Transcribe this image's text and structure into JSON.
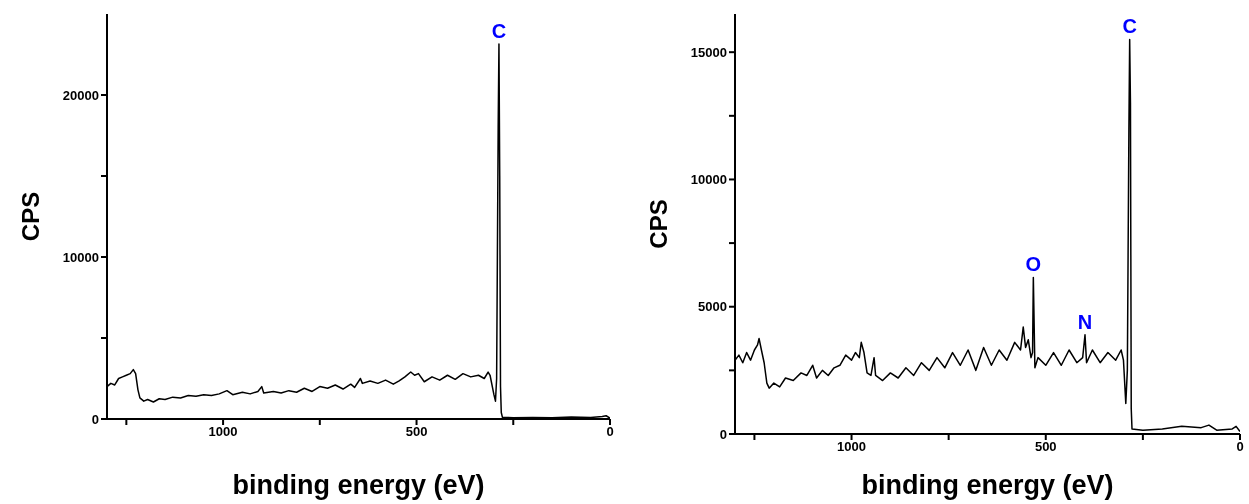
{
  "chart_data": [
    {
      "type": "line",
      "xlabel": "binding energy (eV)",
      "ylabel": "CPS",
      "xlim": [
        1300,
        0
      ],
      "xticks": [
        {
          "value": 1250,
          "label": null
        },
        1000,
        {
          "value": 750,
          "label": null
        },
        500,
        {
          "value": 250,
          "label": null
        },
        0
      ],
      "ylim": [
        0,
        25000
      ],
      "yticks": [
        0,
        {
          "value": 5000,
          "label": null
        },
        10000,
        {
          "value": 15000,
          "label": null
        },
        20000
      ],
      "grid": false,
      "legend": false,
      "marker": "none",
      "line_style": "solid",
      "series": [
        {
          "color": "#000000",
          "x": [
            1300,
            1290,
            1280,
            1270,
            1260,
            1250,
            1240,
            1232,
            1226,
            1220,
            1215,
            1205,
            1195,
            1180,
            1165,
            1150,
            1130,
            1110,
            1090,
            1070,
            1050,
            1030,
            1010,
            990,
            975,
            950,
            930,
            910,
            900,
            895,
            870,
            850,
            830,
            810,
            790,
            770,
            750,
            730,
            710,
            690,
            670,
            660,
            645,
            640,
            620,
            600,
            580,
            560,
            545,
            530,
            515,
            505,
            495,
            480,
            460,
            440,
            420,
            400,
            380,
            360,
            340,
            325,
            315,
            310,
            300,
            296,
            293,
            289,
            287,
            285,
            283,
            281,
            278,
            250,
            200,
            150,
            100,
            50,
            20,
            10,
            0
          ],
          "values": [
            2000,
            2200,
            2100,
            2500,
            2600,
            2700,
            2800,
            3050,
            2800,
            1800,
            1300,
            1100,
            1200,
            1050,
            1250,
            1200,
            1350,
            1300,
            1450,
            1400,
            1500,
            1450,
            1550,
            1750,
            1500,
            1650,
            1550,
            1700,
            2000,
            1600,
            1700,
            1600,
            1750,
            1650,
            1900,
            1700,
            2000,
            1900,
            2100,
            1850,
            2150,
            1950,
            2500,
            2200,
            2350,
            2200,
            2400,
            2150,
            2350,
            2600,
            2900,
            2700,
            2800,
            2300,
            2600,
            2400,
            2700,
            2450,
            2800,
            2600,
            2700,
            2500,
            2900,
            2700,
            1500,
            1100,
            2500,
            18000,
            23150,
            15000,
            2000,
            400,
            100,
            80,
            100,
            80,
            120,
            100,
            150,
            200,
            50
          ]
        }
      ],
      "annotations": [
        {
          "text": "C",
          "x": 287,
          "y": 23150
        }
      ]
    },
    {
      "type": "line",
      "xlabel": "binding energy (eV)",
      "ylabel": "CPS",
      "xlim": [
        1300,
        0
      ],
      "xticks": [
        {
          "value": 1250,
          "label": null
        },
        1000,
        {
          "value": 750,
          "label": null
        },
        500,
        {
          "value": 250,
          "label": null
        },
        0
      ],
      "ylim": [
        0,
        16500
      ],
      "yticks": [
        0,
        {
          "value": 2500,
          "label": null
        },
        5000,
        {
          "value": 7500,
          "label": null
        },
        10000,
        {
          "value": 12500,
          "label": null
        },
        15000
      ],
      "grid": false,
      "legend": false,
      "marker": "none",
      "line_style": "solid",
      "series": [
        {
          "color": "#000000",
          "x": [
            1300,
            1290,
            1280,
            1270,
            1260,
            1250,
            1242,
            1238,
            1232,
            1225,
            1218,
            1212,
            1200,
            1185,
            1170,
            1150,
            1130,
            1115,
            1100,
            1090,
            1075,
            1060,
            1045,
            1030,
            1015,
            1000,
            990,
            980,
            975,
            968,
            960,
            950,
            942,
            938,
            920,
            900,
            880,
            860,
            840,
            820,
            800,
            780,
            760,
            740,
            720,
            700,
            680,
            660,
            640,
            620,
            600,
            580,
            565,
            558,
            552,
            545,
            538,
            534,
            532,
            528,
            520,
            500,
            480,
            460,
            440,
            420,
            405,
            399,
            395,
            380,
            360,
            340,
            320,
            306,
            300,
            294,
            290,
            286,
            284,
            282,
            280,
            278,
            250,
            200,
            150,
            100,
            80,
            60,
            20,
            10,
            0
          ],
          "values": [
            2900,
            3100,
            2800,
            3200,
            2900,
            3300,
            3500,
            3750,
            3300,
            2800,
            2000,
            1800,
            2000,
            1850,
            2200,
            2100,
            2400,
            2300,
            2700,
            2200,
            2500,
            2300,
            2600,
            2700,
            3100,
            2900,
            3200,
            3000,
            3600,
            3200,
            2400,
            2300,
            3000,
            2300,
            2100,
            2400,
            2200,
            2600,
            2300,
            2800,
            2500,
            3000,
            2600,
            3200,
            2700,
            3300,
            2500,
            3400,
            2700,
            3300,
            2900,
            3600,
            3300,
            4200,
            3400,
            3700,
            3000,
            3200,
            6150,
            2600,
            3000,
            2700,
            3200,
            2700,
            3300,
            2800,
            3000,
            3900,
            2800,
            3300,
            2800,
            3200,
            2900,
            3300,
            2900,
            1200,
            2500,
            12000,
            15500,
            13000,
            1000,
            200,
            150,
            200,
            300,
            250,
            350,
            150,
            200,
            300,
            100
          ]
        }
      ],
      "annotations": [
        {
          "text": "O",
          "x": 532,
          "y": 6150
        },
        {
          "text": "N",
          "x": 399,
          "y": 3900
        },
        {
          "text": "C",
          "x": 284,
          "y": 15500
        }
      ]
    }
  ]
}
